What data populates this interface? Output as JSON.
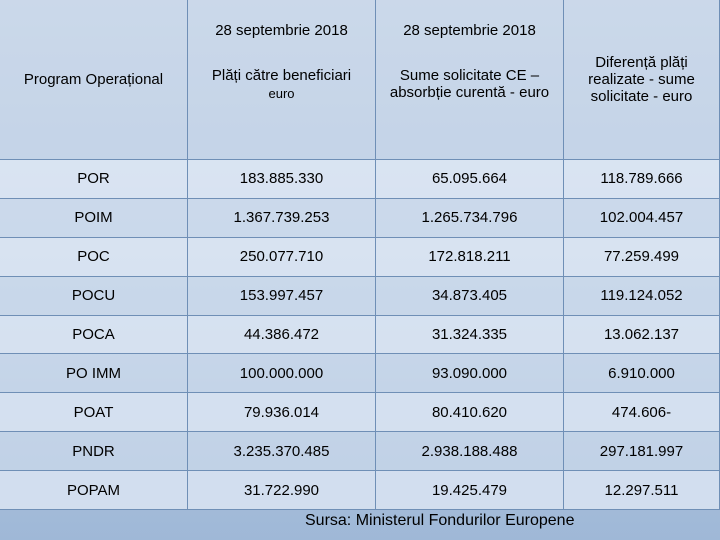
{
  "header": {
    "col1": "Program Operațional",
    "col2_date": "28 septembrie 2018",
    "col2_title": "Plăți către beneficiari",
    "col2_unit": "euro",
    "col3_date": "28 septembrie 2018",
    "col3_title": "Sume solicitate CE – absorbție curentă - euro",
    "col4_title": "Diferență plăți realizate - sume solicitate - euro"
  },
  "rows": [
    {
      "program": "POR",
      "payments": "183.885.330",
      "requested": "65.095.664",
      "difference": "118.789.666"
    },
    {
      "program": "POIM",
      "payments": "1.367.739.253",
      "requested": "1.265.734.796",
      "difference": "102.004.457"
    },
    {
      "program": "POC",
      "payments": "250.077.710",
      "requested": "172.818.211",
      "difference": "77.259.499"
    },
    {
      "program": "POCU",
      "payments": "153.997.457",
      "requested": "34.873.405",
      "difference": "119.124.052"
    },
    {
      "program": "POCA",
      "payments": "44.386.472",
      "requested": "31.324.335",
      "difference": "13.062.137"
    },
    {
      "program": "PO IMM",
      "payments": "100.000.000",
      "requested": "93.090.000",
      "difference": "6.910.000"
    },
    {
      "program": "POAT",
      "payments": "79.936.014",
      "requested": "80.410.620",
      "difference": "474.606-"
    },
    {
      "program": "PNDR",
      "payments": "3.235.370.485",
      "requested": "2.938.188.488",
      "difference": "297.181.997"
    },
    {
      "program": "POPAM",
      "payments": "31.722.990",
      "requested": "19.425.479",
      "difference": "12.297.511"
    }
  ],
  "source": "Sursa: Ministerul Fondurilor Europene"
}
